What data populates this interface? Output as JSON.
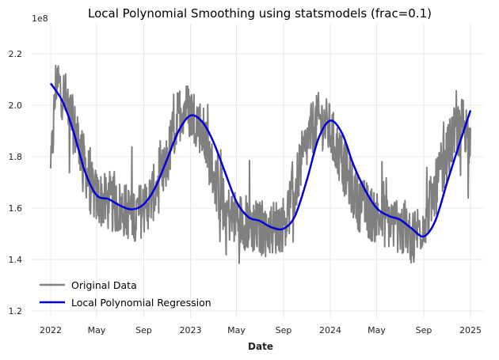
{
  "chart_data": {
    "type": "line",
    "title": "Local Polynomial Smoothing using statsmodels (frac=0.1)",
    "xlabel": "Date",
    "ylabel": "",
    "y_offset_label": "1e8",
    "x_range": [
      "2022-01-01",
      "2025-01-01"
    ],
    "ylim": [
      120000000,
      232000000
    ],
    "x_ticks": [
      {
        "date": "2022-01-01",
        "label": "2022"
      },
      {
        "date": "2022-05-01",
        "label": "May"
      },
      {
        "date": "2022-09-01",
        "label": "Sep"
      },
      {
        "date": "2023-01-01",
        "label": "2023"
      },
      {
        "date": "2023-05-01",
        "label": "May"
      },
      {
        "date": "2023-09-01",
        "label": "Sep"
      },
      {
        "date": "2024-01-01",
        "label": "2024"
      },
      {
        "date": "2024-05-01",
        "label": "May"
      },
      {
        "date": "2024-09-01",
        "label": "Sep"
      },
      {
        "date": "2025-01-01",
        "label": "2025"
      }
    ],
    "y_ticks": [
      {
        "value": 120000000,
        "label": "1.2"
      },
      {
        "value": 140000000,
        "label": "1.4"
      },
      {
        "value": 160000000,
        "label": "1.6"
      },
      {
        "value": 180000000,
        "label": "1.8"
      },
      {
        "value": 200000000,
        "label": "2.0"
      },
      {
        "value": 220000000,
        "label": "2.2"
      }
    ],
    "grid": true,
    "legend_position": "lower-left",
    "series": [
      {
        "name": "Original Data",
        "color": "#808080",
        "style": "noisy",
        "x": [
          "2022-01-01",
          "2022-01-15",
          "2022-02-01",
          "2022-02-15",
          "2022-03-01",
          "2022-03-15",
          "2022-04-01",
          "2022-04-15",
          "2022-05-01",
          "2022-05-15",
          "2022-06-01",
          "2022-06-15",
          "2022-07-01",
          "2022-07-15",
          "2022-08-01",
          "2022-08-15",
          "2022-09-01",
          "2022-09-15",
          "2022-10-01",
          "2022-10-15",
          "2022-11-01",
          "2022-11-15",
          "2022-12-01",
          "2022-12-15",
          "2023-01-01",
          "2023-01-15",
          "2023-02-01",
          "2023-02-15",
          "2023-03-01",
          "2023-03-15",
          "2023-04-01",
          "2023-04-15",
          "2023-05-01",
          "2023-05-15",
          "2023-06-01",
          "2023-06-15",
          "2023-07-01",
          "2023-07-15",
          "2023-08-01",
          "2023-08-15",
          "2023-09-01",
          "2023-09-15",
          "2023-10-01",
          "2023-10-15",
          "2023-11-01",
          "2023-11-15",
          "2023-12-01",
          "2023-12-15",
          "2024-01-01",
          "2024-01-15",
          "2024-02-01",
          "2024-02-15",
          "2024-03-01",
          "2024-03-15",
          "2024-04-01",
          "2024-04-15",
          "2024-05-01",
          "2024-05-15",
          "2024-06-01",
          "2024-06-15",
          "2024-07-01",
          "2024-07-15",
          "2024-08-01",
          "2024-08-15",
          "2024-09-01",
          "2024-09-15",
          "2024-10-01",
          "2024-10-15",
          "2024-11-01",
          "2024-11-15",
          "2024-12-01",
          "2024-12-15",
          "2025-01-01"
        ],
        "values": [
          172000000,
          210000000,
          205000000,
          200000000,
          192000000,
          186000000,
          176000000,
          168000000,
          164000000,
          163000000,
          162000000,
          161000000,
          160000000,
          159000000,
          158000000,
          158000000,
          160000000,
          163000000,
          167000000,
          170000000,
          178000000,
          188000000,
          196000000,
          200000000,
          197000000,
          195000000,
          190000000,
          182000000,
          174000000,
          166000000,
          160000000,
          157000000,
          156000000,
          155000000,
          154000000,
          153000000,
          152000000,
          152000000,
          152000000,
          153000000,
          154000000,
          160000000,
          167000000,
          177000000,
          185000000,
          191000000,
          194000000,
          193000000,
          190000000,
          184000000,
          178000000,
          172000000,
          166000000,
          162000000,
          160000000,
          158000000,
          157000000,
          156000000,
          155000000,
          154000000,
          153000000,
          150000000,
          149000000,
          151000000,
          155000000,
          160000000,
          167000000,
          174000000,
          181000000,
          187000000,
          191000000,
          194000000,
          185000000
        ]
      },
      {
        "name": "Local Polynomial Regression",
        "color": "#0000dd",
        "style": "smooth",
        "x": [
          "2022-01-01",
          "2022-02-01",
          "2022-03-01",
          "2022-04-01",
          "2022-05-01",
          "2022-06-01",
          "2022-07-01",
          "2022-08-01",
          "2022-09-01",
          "2022-10-01",
          "2022-11-01",
          "2022-12-01",
          "2023-01-01",
          "2023-02-01",
          "2023-03-01",
          "2023-04-01",
          "2023-05-01",
          "2023-06-01",
          "2023-07-01",
          "2023-08-01",
          "2023-09-01",
          "2023-10-01",
          "2023-11-01",
          "2023-12-01",
          "2024-01-01",
          "2024-02-01",
          "2024-03-01",
          "2024-04-01",
          "2024-05-01",
          "2024-06-01",
          "2024-07-01",
          "2024-08-01",
          "2024-09-01",
          "2024-10-01",
          "2024-11-01",
          "2024-12-01",
          "2025-01-01"
        ],
        "values": [
          208500000,
          201500000,
          190000000,
          174000000,
          165000000,
          163500000,
          161000000,
          159500000,
          161500000,
          168000000,
          179000000,
          190000000,
          196000000,
          193500000,
          186000000,
          174000000,
          162500000,
          156500000,
          155000000,
          152500000,
          152000000,
          157000000,
          171000000,
          187000000,
          194000000,
          189000000,
          177000000,
          167000000,
          160000000,
          157000000,
          155500000,
          152000000,
          149000000,
          155000000,
          170000000,
          184000000,
          198000000
        ]
      }
    ]
  }
}
